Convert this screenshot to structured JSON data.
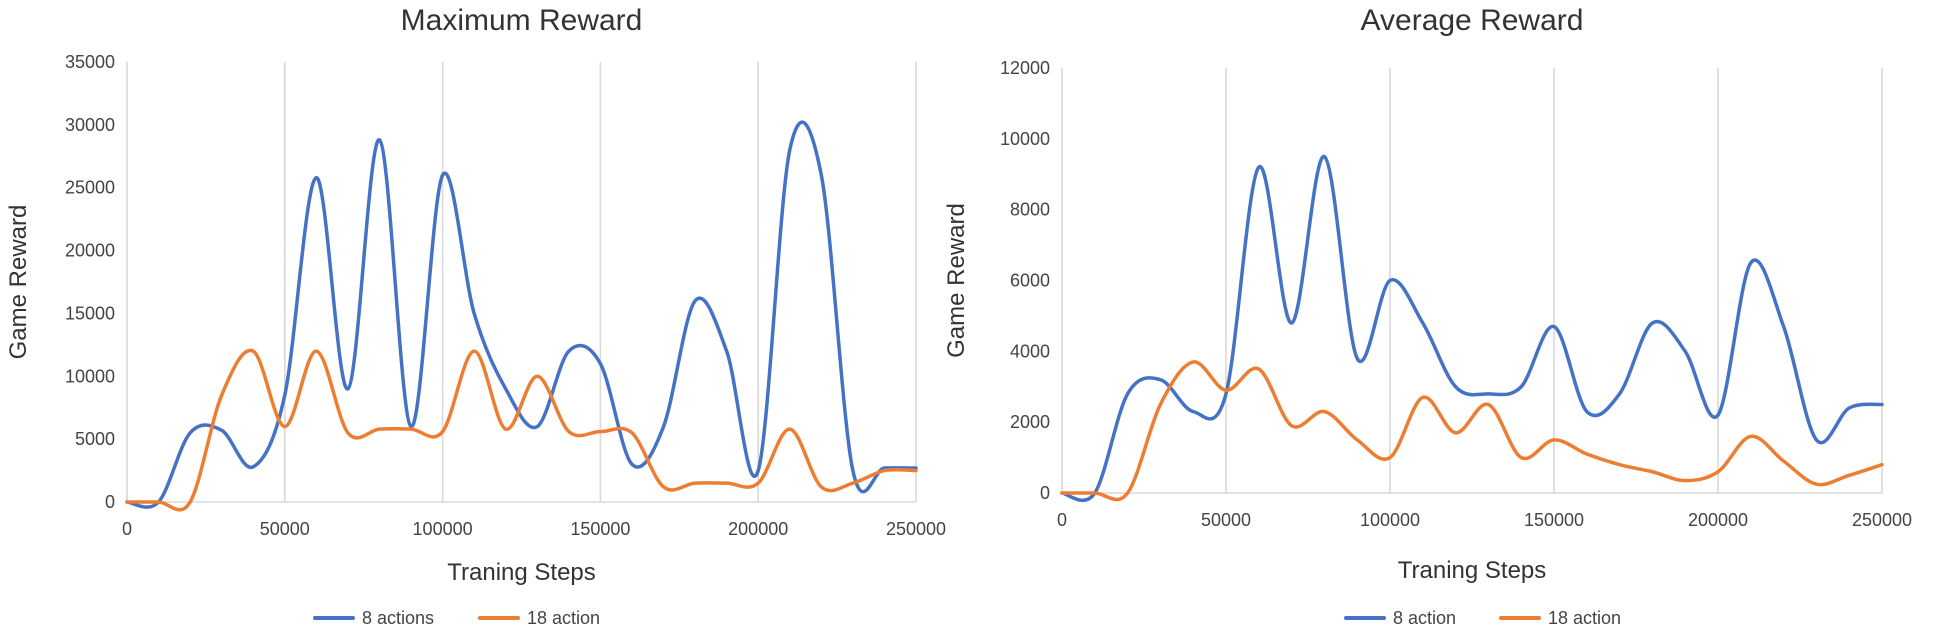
{
  "chart_data": [
    {
      "type": "line",
      "title": "Maximum Reward",
      "xlabel": "Traning Steps",
      "ylabel": "Game Reward",
      "xlim": [
        0,
        250000
      ],
      "ylim": [
        0,
        35000
      ],
      "xticks": [
        0,
        50000,
        100000,
        150000,
        200000,
        250000
      ],
      "yticks": [
        0,
        5000,
        10000,
        15000,
        20000,
        25000,
        30000,
        35000
      ],
      "xtick_labels": [
        "0",
        "50000",
        "100000",
        "150000",
        "200000",
        "250000"
      ],
      "ytick_labels": [
        "0",
        "5000",
        "10000",
        "15000",
        "20000",
        "25000",
        "30000",
        "35000"
      ],
      "grid": "vertical",
      "legend": "bottom",
      "x": [
        0,
        10000,
        20000,
        30000,
        40000,
        50000,
        60000,
        70000,
        80000,
        90000,
        100000,
        110000,
        120000,
        130000,
        140000,
        150000,
        160000,
        170000,
        180000,
        190000,
        200000,
        210000,
        220000,
        230000,
        240000,
        250000
      ],
      "series": [
        {
          "name": "8 actions",
          "color": "#4472c4",
          "values": [
            0,
            0,
            5500,
            5700,
            2800,
            8500,
            25800,
            9000,
            28800,
            6000,
            26000,
            15000,
            9000,
            6000,
            12000,
            11000,
            3000,
            6000,
            16000,
            12000,
            2500,
            28000,
            26000,
            2500,
            2700,
            2700
          ]
        },
        {
          "name": "18 action",
          "color": "#ed7d31",
          "values": [
            0,
            0,
            0,
            8500,
            12000,
            6000,
            12000,
            5500,
            5800,
            5800,
            5600,
            12000,
            5800,
            10000,
            5600,
            5600,
            5500,
            1200,
            1500,
            1500,
            1500,
            5800,
            1200,
            1500,
            2500,
            2500
          ]
        }
      ]
    },
    {
      "type": "line",
      "title": "Average Reward",
      "xlabel": "Traning Steps",
      "ylabel": "Game Reward",
      "xlim": [
        0,
        250000
      ],
      "ylim": [
        0,
        12000
      ],
      "xticks": [
        0,
        50000,
        100000,
        150000,
        200000,
        250000
      ],
      "yticks": [
        0,
        2000,
        4000,
        6000,
        8000,
        10000,
        12000
      ],
      "xtick_labels": [
        "0",
        "50000",
        "100000",
        "150000",
        "200000",
        "250000"
      ],
      "ytick_labels": [
        "0",
        "2000",
        "4000",
        "6000",
        "8000",
        "10000",
        "12000"
      ],
      "grid": "vertical",
      "legend": "bottom",
      "x": [
        0,
        10000,
        20000,
        30000,
        40000,
        50000,
        60000,
        70000,
        80000,
        90000,
        100000,
        110000,
        120000,
        130000,
        140000,
        150000,
        160000,
        170000,
        180000,
        190000,
        200000,
        210000,
        220000,
        230000,
        240000,
        250000
      ],
      "series": [
        {
          "name": "8 action",
          "color": "#4472c4",
          "values": [
            0,
            0,
            2800,
            3200,
            2300,
            2800,
            9200,
            4800,
            9500,
            3800,
            6000,
            4800,
            3000,
            2800,
            3000,
            4700,
            2300,
            2800,
            4800,
            4000,
            2200,
            6500,
            4700,
            1500,
            2400,
            2500
          ]
        },
        {
          "name": "18 action",
          "color": "#ed7d31",
          "values": [
            0,
            0,
            0,
            2500,
            3700,
            2900,
            3500,
            1900,
            2300,
            1500,
            1000,
            2700,
            1700,
            2500,
            1000,
            1500,
            1100,
            800,
            600,
            350,
            600,
            1600,
            900,
            250,
            500,
            800
          ]
        }
      ]
    }
  ]
}
